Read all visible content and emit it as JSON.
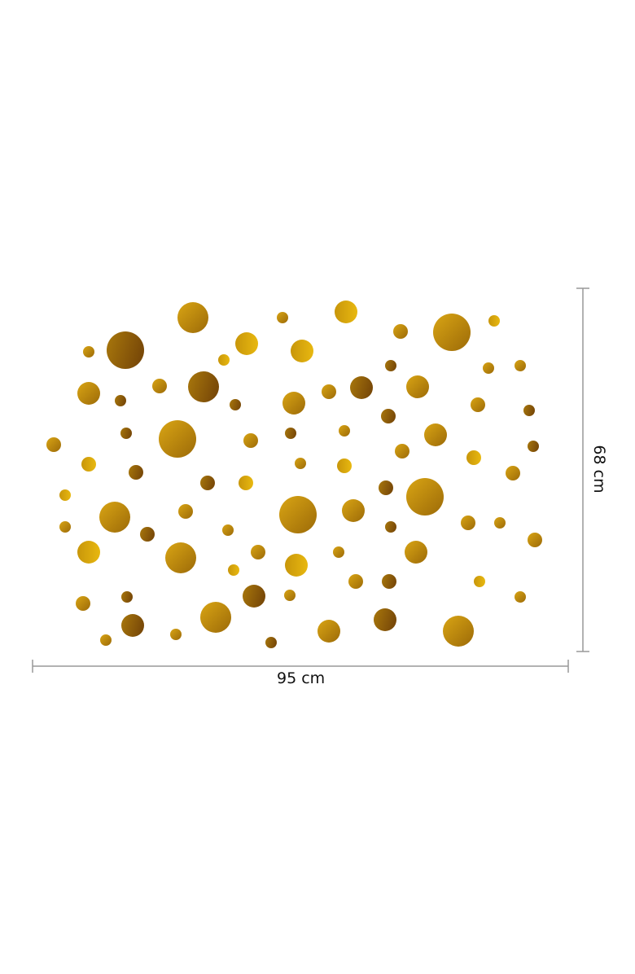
{
  "dimensions": {
    "width_label": "95 cm",
    "height_label": "68 cm"
  },
  "colors": {
    "gold_light": "#e0b010",
    "gold_mid": "#b8860b",
    "gold_dark": "#7a4a08",
    "dimension_line": "#999999"
  }
}
